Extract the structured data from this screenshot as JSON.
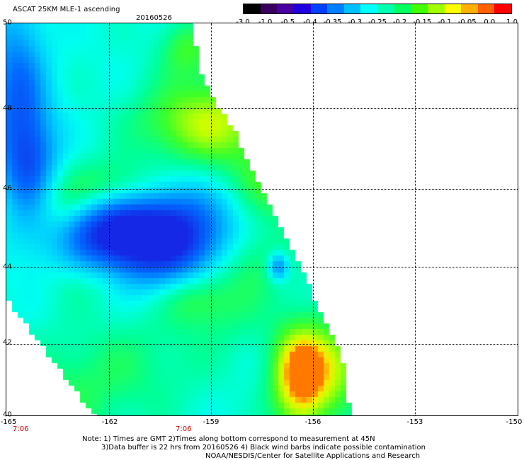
{
  "title": "ASCAT 25KM MLE-1 ascending",
  "date": "20160526",
  "colorbar": {
    "colors": [
      "#000000",
      "#3a0060",
      "#4a00a0",
      "#2000e0",
      "#0040ff",
      "#0080ff",
      "#00c0ff",
      "#00ffff",
      "#00ffb0",
      "#00ff60",
      "#40ff00",
      "#a0ff00",
      "#ffff00",
      "#ffb000",
      "#ff6000",
      "#ff0000"
    ],
    "tick_labels": [
      "-3.0",
      "-1.0",
      "-0.5",
      "-0.4",
      "-0.35",
      "-0.3",
      "-0.25",
      "-0.2",
      "-0.15",
      "-0.1",
      "-0.05",
      "0.0",
      "1.0"
    ]
  },
  "map": {
    "lat_labels": [
      "50",
      "48",
      "46",
      "44",
      "42",
      "40"
    ],
    "lon_labels": [
      "-165",
      "-162",
      "-159",
      "-156",
      "-153",
      "-150"
    ],
    "time_labels": [
      "7:06",
      "7:06"
    ]
  },
  "notes": [
    "Note: 1) Times are GMT 2)Times along bottom correspond to measurement at 45N",
    "3)Data buffer is 22 hrs from 20160526 4) Black wind barbs indicate possible contamination",
    "NOAA/NESDIS/Center for Satellite Applications and Research"
  ]
}
